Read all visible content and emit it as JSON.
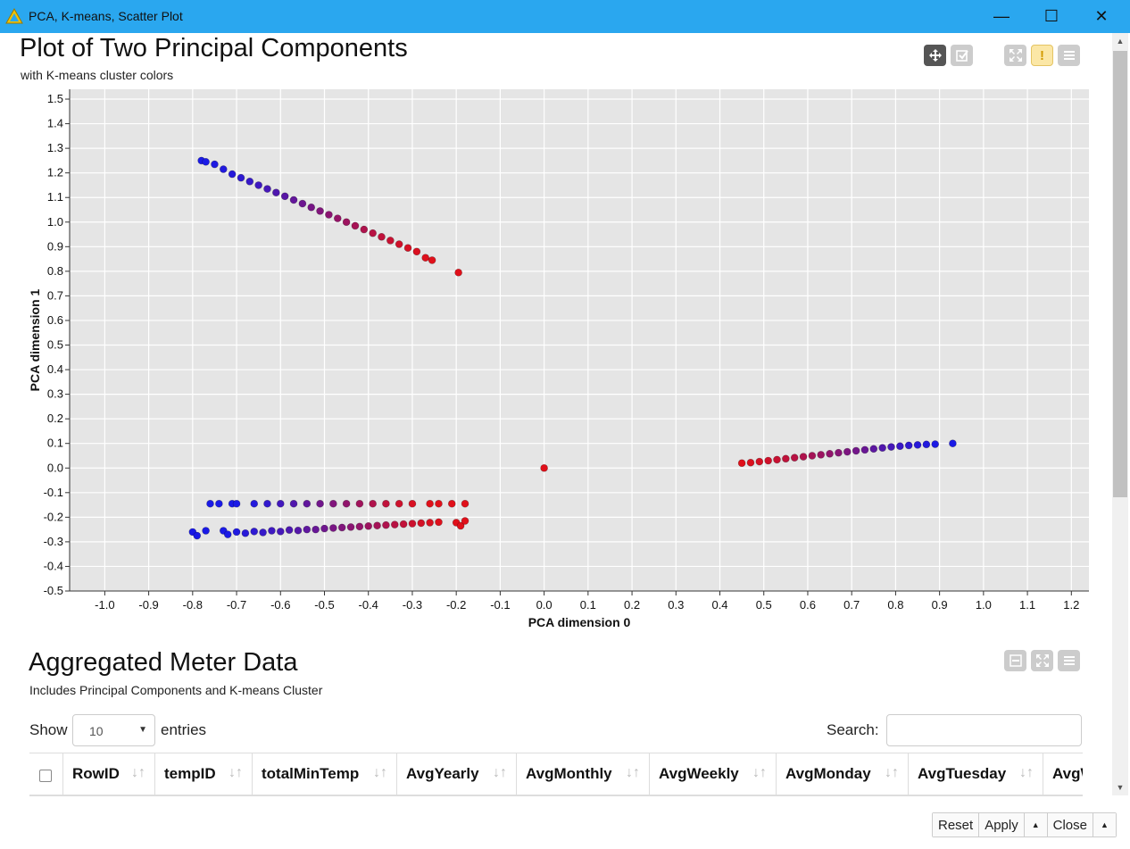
{
  "window": {
    "title": "PCA, K-means, Scatter Plot",
    "minimize": "—",
    "maximize": "☐",
    "close": "✕"
  },
  "plot": {
    "title": "Plot of Two Principal Components",
    "subtitle": "with K-means cluster colors"
  },
  "chart_data": {
    "type": "scatter",
    "xlabel": "PCA dimension 0",
    "ylabel": "PCA dimension 1",
    "xlim": [
      -1.08,
      1.24
    ],
    "ylim": [
      -0.5,
      1.54
    ],
    "xticks": [
      "-1.0",
      "-0.9",
      "-0.8",
      "-0.7",
      "-0.6",
      "-0.5",
      "-0.4",
      "-0.3",
      "-0.2",
      "-0.1",
      "0.0",
      "0.1",
      "0.2",
      "0.3",
      "0.4",
      "0.5",
      "0.6",
      "0.7",
      "0.8",
      "0.9",
      "1.0",
      "1.1",
      "1.2"
    ],
    "yticks": [
      "-0.5",
      "-0.4",
      "-0.3",
      "-0.2",
      "-0.1",
      "0.0",
      "0.1",
      "0.2",
      "0.3",
      "0.4",
      "0.5",
      "0.6",
      "0.7",
      "0.8",
      "0.9",
      "1.0",
      "1.1",
      "1.2",
      "1.3",
      "1.4",
      "1.5"
    ],
    "grid": true,
    "color_low": "#e0101a",
    "color_high": "#1a1ae6",
    "points": [
      {
        "x": -0.78,
        "y": 1.25,
        "c": 1.0
      },
      {
        "x": -0.77,
        "y": 1.245,
        "c": 1.0
      },
      {
        "x": -0.75,
        "y": 1.235,
        "c": 0.98
      },
      {
        "x": -0.73,
        "y": 1.215,
        "c": 0.96
      },
      {
        "x": -0.71,
        "y": 1.195,
        "c": 0.94
      },
      {
        "x": -0.69,
        "y": 1.18,
        "c": 0.9
      },
      {
        "x": -0.67,
        "y": 1.165,
        "c": 0.86
      },
      {
        "x": -0.65,
        "y": 1.15,
        "c": 0.82
      },
      {
        "x": -0.63,
        "y": 1.135,
        "c": 0.78
      },
      {
        "x": -0.61,
        "y": 1.12,
        "c": 0.73
      },
      {
        "x": -0.59,
        "y": 1.105,
        "c": 0.68
      },
      {
        "x": -0.57,
        "y": 1.09,
        "c": 0.63
      },
      {
        "x": -0.55,
        "y": 1.075,
        "c": 0.58
      },
      {
        "x": -0.53,
        "y": 1.06,
        "c": 0.53
      },
      {
        "x": -0.51,
        "y": 1.045,
        "c": 0.48
      },
      {
        "x": -0.49,
        "y": 1.03,
        "c": 0.43
      },
      {
        "x": -0.47,
        "y": 1.015,
        "c": 0.38
      },
      {
        "x": -0.45,
        "y": 1.0,
        "c": 0.34
      },
      {
        "x": -0.43,
        "y": 0.985,
        "c": 0.29
      },
      {
        "x": -0.41,
        "y": 0.97,
        "c": 0.25
      },
      {
        "x": -0.39,
        "y": 0.955,
        "c": 0.2
      },
      {
        "x": -0.37,
        "y": 0.94,
        "c": 0.16
      },
      {
        "x": -0.35,
        "y": 0.925,
        "c": 0.12
      },
      {
        "x": -0.33,
        "y": 0.91,
        "c": 0.08
      },
      {
        "x": -0.31,
        "y": 0.895,
        "c": 0.05
      },
      {
        "x": -0.29,
        "y": 0.88,
        "c": 0.03
      },
      {
        "x": -0.27,
        "y": 0.855,
        "c": 0.01
      },
      {
        "x": -0.255,
        "y": 0.845,
        "c": 0.0
      },
      {
        "x": -0.195,
        "y": 0.795,
        "c": 0.0
      },
      {
        "x": -0.76,
        "y": -0.145,
        "c": 1.0
      },
      {
        "x": -0.74,
        "y": -0.145,
        "c": 1.0
      },
      {
        "x": -0.71,
        "y": -0.145,
        "c": 1.0
      },
      {
        "x": -0.7,
        "y": -0.145,
        "c": 1.0
      },
      {
        "x": -0.66,
        "y": -0.145,
        "c": 0.95
      },
      {
        "x": -0.63,
        "y": -0.145,
        "c": 0.88
      },
      {
        "x": -0.6,
        "y": -0.145,
        "c": 0.8
      },
      {
        "x": -0.57,
        "y": -0.145,
        "c": 0.72
      },
      {
        "x": -0.54,
        "y": -0.145,
        "c": 0.64
      },
      {
        "x": -0.51,
        "y": -0.145,
        "c": 0.56
      },
      {
        "x": -0.48,
        "y": -0.145,
        "c": 0.48
      },
      {
        "x": -0.45,
        "y": -0.145,
        "c": 0.4
      },
      {
        "x": -0.42,
        "y": -0.145,
        "c": 0.32
      },
      {
        "x": -0.39,
        "y": -0.145,
        "c": 0.24
      },
      {
        "x": -0.36,
        "y": -0.145,
        "c": 0.16
      },
      {
        "x": -0.33,
        "y": -0.145,
        "c": 0.09
      },
      {
        "x": -0.3,
        "y": -0.145,
        "c": 0.04
      },
      {
        "x": -0.26,
        "y": -0.145,
        "c": 0.0
      },
      {
        "x": -0.24,
        "y": -0.145,
        "c": 0.0
      },
      {
        "x": -0.21,
        "y": -0.145,
        "c": 0.0
      },
      {
        "x": -0.18,
        "y": -0.145,
        "c": 0.0
      },
      {
        "x": -0.8,
        "y": -0.26,
        "c": 1.0
      },
      {
        "x": -0.79,
        "y": -0.275,
        "c": 1.0
      },
      {
        "x": -0.77,
        "y": -0.255,
        "c": 1.0
      },
      {
        "x": -0.73,
        "y": -0.255,
        "c": 1.0
      },
      {
        "x": -0.72,
        "y": -0.27,
        "c": 1.0
      },
      {
        "x": -0.7,
        "y": -0.26,
        "c": 0.97
      },
      {
        "x": -0.68,
        "y": -0.265,
        "c": 0.93
      },
      {
        "x": -0.66,
        "y": -0.258,
        "c": 0.9
      },
      {
        "x": -0.64,
        "y": -0.262,
        "c": 0.86
      },
      {
        "x": -0.62,
        "y": -0.255,
        "c": 0.82
      },
      {
        "x": -0.6,
        "y": -0.258,
        "c": 0.78
      },
      {
        "x": -0.58,
        "y": -0.252,
        "c": 0.74
      },
      {
        "x": -0.56,
        "y": -0.254,
        "c": 0.7
      },
      {
        "x": -0.54,
        "y": -0.25,
        "c": 0.65
      },
      {
        "x": -0.52,
        "y": -0.25,
        "c": 0.61
      },
      {
        "x": -0.5,
        "y": -0.246,
        "c": 0.57
      },
      {
        "x": -0.48,
        "y": -0.244,
        "c": 0.52
      },
      {
        "x": -0.46,
        "y": -0.242,
        "c": 0.48
      },
      {
        "x": -0.44,
        "y": -0.24,
        "c": 0.43
      },
      {
        "x": -0.42,
        "y": -0.238,
        "c": 0.39
      },
      {
        "x": -0.4,
        "y": -0.236,
        "c": 0.34
      },
      {
        "x": -0.38,
        "y": -0.234,
        "c": 0.3
      },
      {
        "x": -0.36,
        "y": -0.232,
        "c": 0.25
      },
      {
        "x": -0.34,
        "y": -0.23,
        "c": 0.2
      },
      {
        "x": -0.32,
        "y": -0.228,
        "c": 0.15
      },
      {
        "x": -0.3,
        "y": -0.226,
        "c": 0.1
      },
      {
        "x": -0.28,
        "y": -0.224,
        "c": 0.06
      },
      {
        "x": -0.26,
        "y": -0.222,
        "c": 0.03
      },
      {
        "x": -0.24,
        "y": -0.22,
        "c": 0.01
      },
      {
        "x": -0.2,
        "y": -0.222,
        "c": 0.0
      },
      {
        "x": -0.19,
        "y": -0.235,
        "c": 0.0
      },
      {
        "x": -0.18,
        "y": -0.215,
        "c": 0.0
      },
      {
        "x": 0.0,
        "y": 0.0,
        "c": 0.0
      },
      {
        "x": 0.45,
        "y": 0.02,
        "c": 0.0
      },
      {
        "x": 0.47,
        "y": 0.022,
        "c": 0.02
      },
      {
        "x": 0.49,
        "y": 0.026,
        "c": 0.05
      },
      {
        "x": 0.51,
        "y": 0.03,
        "c": 0.08
      },
      {
        "x": 0.53,
        "y": 0.034,
        "c": 0.12
      },
      {
        "x": 0.55,
        "y": 0.038,
        "c": 0.16
      },
      {
        "x": 0.57,
        "y": 0.042,
        "c": 0.2
      },
      {
        "x": 0.59,
        "y": 0.046,
        "c": 0.25
      },
      {
        "x": 0.61,
        "y": 0.05,
        "c": 0.3
      },
      {
        "x": 0.63,
        "y": 0.054,
        "c": 0.35
      },
      {
        "x": 0.65,
        "y": 0.058,
        "c": 0.4
      },
      {
        "x": 0.67,
        "y": 0.062,
        "c": 0.45
      },
      {
        "x": 0.69,
        "y": 0.066,
        "c": 0.5
      },
      {
        "x": 0.71,
        "y": 0.07,
        "c": 0.55
      },
      {
        "x": 0.73,
        "y": 0.074,
        "c": 0.6
      },
      {
        "x": 0.75,
        "y": 0.078,
        "c": 0.66
      },
      {
        "x": 0.77,
        "y": 0.082,
        "c": 0.72
      },
      {
        "x": 0.79,
        "y": 0.086,
        "c": 0.78
      },
      {
        "x": 0.81,
        "y": 0.089,
        "c": 0.84
      },
      {
        "x": 0.83,
        "y": 0.092,
        "c": 0.89
      },
      {
        "x": 0.85,
        "y": 0.094,
        "c": 0.93
      },
      {
        "x": 0.87,
        "y": 0.096,
        "c": 0.96
      },
      {
        "x": 0.89,
        "y": 0.097,
        "c": 0.99
      },
      {
        "x": 0.93,
        "y": 0.1,
        "c": 1.0
      }
    ]
  },
  "table": {
    "title": "Aggregated Meter Data",
    "subtitle": "Includes Principal Components and K-means Cluster",
    "show_label": "Show",
    "entries_value": "10",
    "entries_label": "entries",
    "search_label": "Search:",
    "search_value": "",
    "columns": [
      {
        "label": "RowID",
        "w": 103
      },
      {
        "label": "tempID",
        "w": 109
      },
      {
        "label": "totalMinTemp",
        "w": 162
      },
      {
        "label": "AvgYearly",
        "w": 134
      },
      {
        "label": "AvgMonthly",
        "w": 149
      },
      {
        "label": "AvgWeekly",
        "w": 142
      },
      {
        "label": "AvgMonday",
        "w": 148
      },
      {
        "label": "AvgTuesday",
        "w": 151
      },
      {
        "label": "AvgWednesday",
        "w": 170
      }
    ]
  },
  "footer": {
    "reset": "Reset",
    "apply": "Apply",
    "close": "Close"
  }
}
